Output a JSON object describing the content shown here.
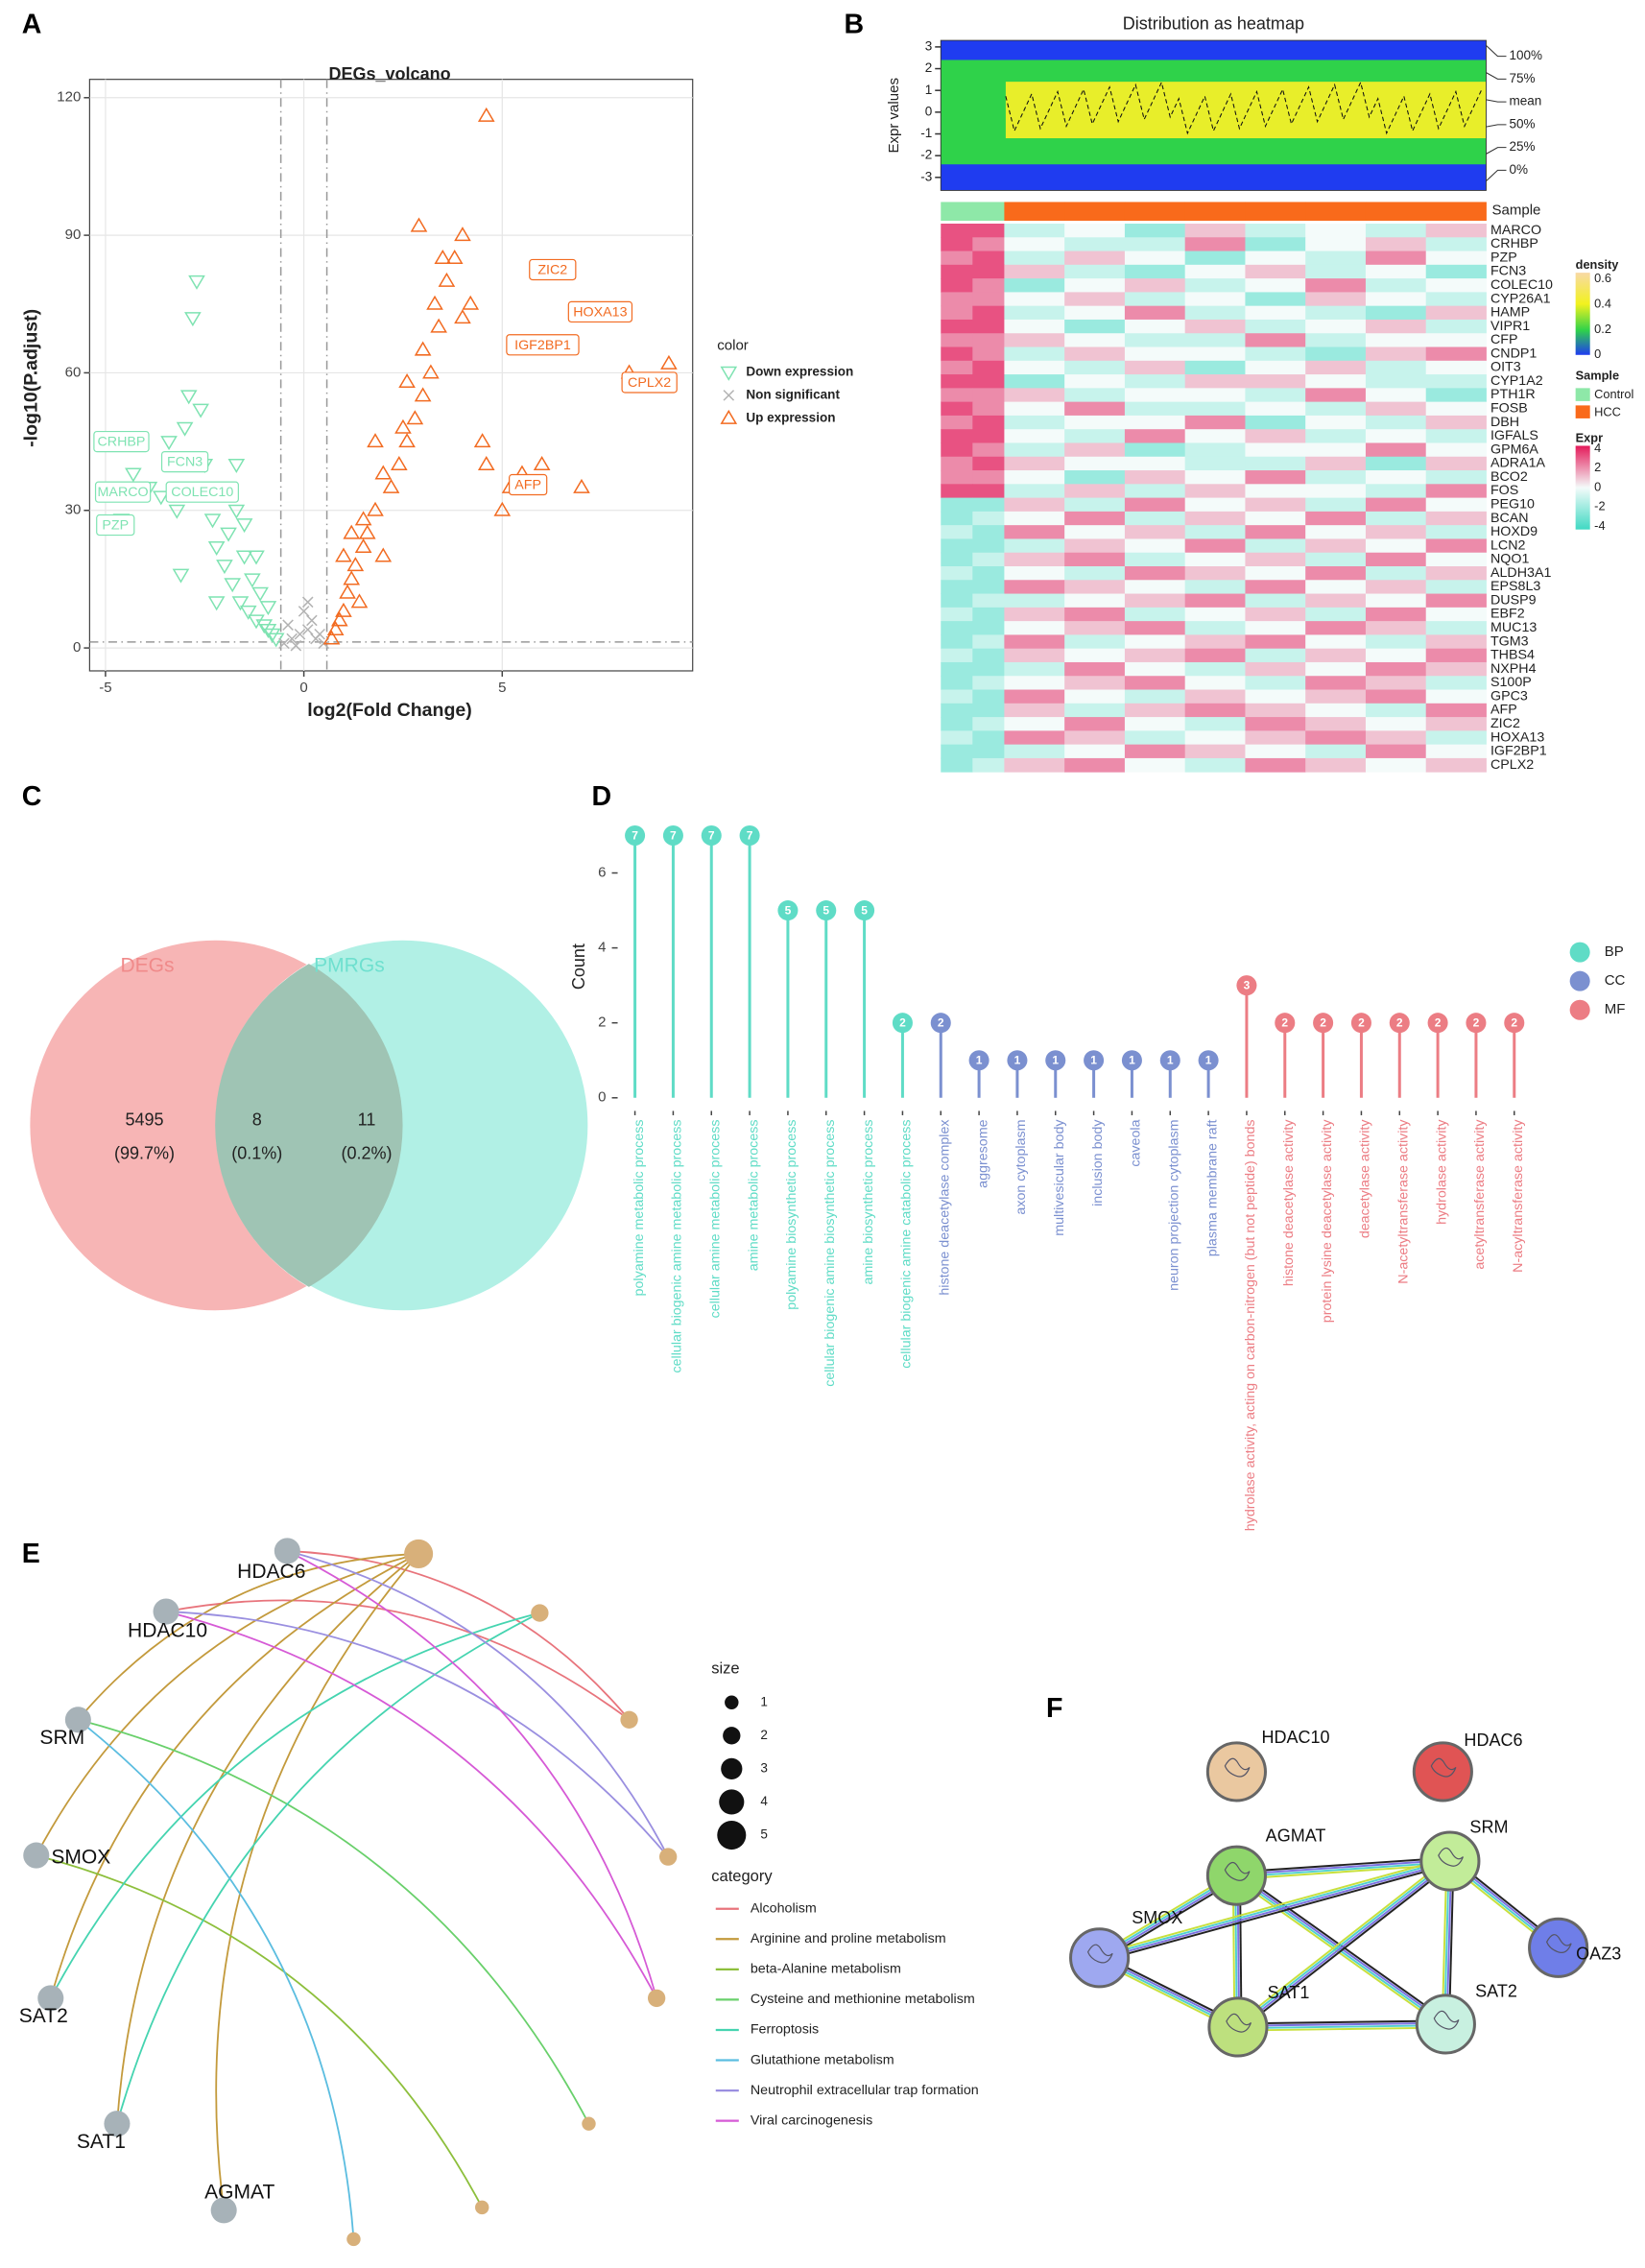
{
  "chart_data": [
    {
      "panel": "A",
      "type": "scatter",
      "title": "DEGs_volcano",
      "x_label": "log2(Fold Change)",
      "y_label": "-log10(P.adjust)",
      "xlim": [
        -5.4,
        9.8
      ],
      "ylim": [
        -5,
        124
      ],
      "xticks": [
        -5,
        0,
        5
      ],
      "yticks": [
        0,
        30,
        60,
        90,
        120
      ],
      "grid": true,
      "legend_title": "color",
      "thresholds": {
        "x": [
          -0.58,
          0.58
        ],
        "y": [
          1.3
        ]
      },
      "series": [
        {
          "name": "Down expression",
          "color": "#7fe3b2",
          "marker": "triangle-down",
          "x": [
            -4.3,
            -3.9,
            -3.6,
            -3.2,
            -3.0,
            -2.8,
            -2.6,
            -2.5,
            -2.3,
            -2.2,
            -2.0,
            -1.9,
            -1.8,
            -1.7,
            -1.6,
            -1.5,
            -1.4,
            -1.3,
            -1.2,
            -1.1,
            -1.0,
            -0.9,
            -0.8,
            -0.7,
            -2.7,
            -3.4,
            -1.9,
            -1.5,
            -2.2,
            -1.2,
            -0.9,
            -2.9,
            -4.6,
            -3.1,
            -1.7
          ],
          "y": [
            38,
            35,
            33,
            30,
            48,
            72,
            52,
            40,
            28,
            22,
            18,
            25,
            14,
            30,
            10,
            20,
            8,
            15,
            6,
            12,
            5,
            4,
            3,
            2,
            80,
            45,
            35,
            27,
            10,
            20,
            9,
            55,
            28,
            16,
            40
          ],
          "labels": [
            {
              "text": "CRHBP",
              "x": -4.6,
              "y": 45
            },
            {
              "text": "FCN3",
              "x": -3.0,
              "y": 40.6
            },
            {
              "text": "MARCO",
              "x": -4.56,
              "y": 34
            },
            {
              "text": "COLEC10",
              "x": -2.56,
              "y": 34
            },
            {
              "text": "PZP",
              "x": -4.75,
              "y": 26.8
            }
          ]
        },
        {
          "name": "Non significant",
          "color": "#b3b3b3",
          "marker": "cross",
          "x": [
            -0.5,
            -0.3,
            -0.1,
            0.1,
            0.3,
            0.5,
            -0.4,
            0.2,
            0,
            0.4,
            -0.2,
            0.1
          ],
          "y": [
            1,
            2,
            3,
            4,
            2,
            1,
            5,
            6,
            8,
            3,
            0.5,
            10
          ],
          "labels": []
        },
        {
          "name": "Up expression",
          "color": "#f26b21",
          "marker": "triangle-up",
          "x": [
            0.7,
            0.8,
            0.9,
            1.0,
            1.1,
            1.2,
            1.3,
            1.4,
            1.5,
            1.6,
            1.8,
            2.0,
            2.2,
            2.4,
            2.6,
            2.8,
            3.0,
            3.2,
            3.4,
            3.6,
            3.8,
            4.0,
            4.2,
            4.5,
            5.0,
            5.5,
            6.0,
            7.0,
            8.2,
            1.0,
            1.5,
            2.0,
            2.5,
            3.0,
            3.5,
            4.0,
            1.2,
            1.8,
            2.6,
            3.3,
            4.6,
            5.2,
            4.6,
            2.9,
            9.2
          ],
          "y": [
            2,
            4,
            6,
            8,
            12,
            15,
            18,
            10,
            22,
            25,
            30,
            20,
            35,
            40,
            45,
            50,
            55,
            60,
            70,
            80,
            85,
            90,
            75,
            45,
            30,
            38,
            40,
            35,
            60,
            20,
            28,
            38,
            48,
            65,
            85,
            72,
            25,
            45,
            58,
            75,
            40,
            35,
            116,
            92,
            62
          ],
          "labels": [
            {
              "text": "ZIC2",
              "x": 6.27,
              "y": 82.5
            },
            {
              "text": "HOXA13",
              "x": 7.47,
              "y": 73.3
            },
            {
              "text": "IGF2BP1",
              "x": 6.02,
              "y": 66.1
            },
            {
              "text": "CPLX2",
              "x": 8.71,
              "y": 57.9
            },
            {
              "text": "AFP",
              "x": 5.65,
              "y": 35.6
            }
          ]
        }
      ]
    },
    {
      "panel": "B",
      "type": "heatmap",
      "title": "Distribution as heatmap",
      "y_label": "Expr values",
      "ylim": [
        -3.6,
        3.3
      ],
      "yticks": [
        -3,
        -2,
        -1,
        0,
        1,
        2,
        3
      ],
      "quantile_labels": [
        "100%",
        "75%",
        "mean",
        "50%",
        "25%",
        "0%"
      ],
      "annotation_title": "Sample",
      "groups": [
        {
          "name": "Control",
          "color": "#8ee8a8"
        },
        {
          "name": "HCC",
          "color": "#f96a1b"
        }
      ],
      "column_groups": [
        0,
        0,
        1,
        1,
        1,
        1,
        1,
        1,
        1,
        1
      ],
      "rows": [
        "MARCO",
        "CRHBP",
        "PZP",
        "FCN3",
        "COLEC10",
        "CYP26A1",
        "HAMP",
        "VIPR1",
        "CFP",
        "CNDP1",
        "OIT3",
        "CYP1A2",
        "PTH1R",
        "FOSB",
        "DBH",
        "IGFALS",
        "GPM6A",
        "ADRA1A",
        "BCO2",
        "FOS",
        "PEG10",
        "BCAN",
        "HOXD9",
        "LCN2",
        "NQO1",
        "ALDH3A1",
        "EPS8L3",
        "DUSP9",
        "EBF2",
        "MUC13",
        "TGM3",
        "THBS4",
        "NXPH4",
        "S100P",
        "GPC3",
        "AFP",
        "ZIC2",
        "HOXA13",
        "IGF2BP1",
        "CPLX2"
      ],
      "values": [
        [
          3,
          3,
          -1,
          0,
          -2,
          1,
          -1,
          0,
          -1,
          1
        ],
        [
          3,
          2,
          0,
          -1,
          -1,
          2,
          -2,
          0,
          1,
          -1
        ],
        [
          2,
          3,
          -1,
          1,
          0,
          -2,
          0,
          -1,
          2,
          0
        ],
        [
          3,
          3,
          1,
          -1,
          -2,
          0,
          1,
          -1,
          0,
          -2
        ],
        [
          3,
          2,
          -2,
          0,
          1,
          -1,
          0,
          2,
          -1,
          0
        ],
        [
          2,
          2,
          0,
          1,
          -1,
          0,
          -2,
          1,
          0,
          -1
        ],
        [
          2,
          3,
          -1,
          0,
          2,
          -1,
          0,
          -1,
          -2,
          1
        ],
        [
          3,
          3,
          0,
          -2,
          0,
          1,
          -1,
          0,
          1,
          -1
        ],
        [
          2,
          2,
          1,
          0,
          -1,
          -1,
          2,
          -1,
          0,
          0
        ],
        [
          3,
          2,
          -1,
          1,
          0,
          0,
          -1,
          -2,
          1,
          2
        ],
        [
          2,
          3,
          0,
          -1,
          1,
          -2,
          0,
          1,
          -1,
          0
        ],
        [
          3,
          3,
          -2,
          0,
          -1,
          1,
          1,
          0,
          -1,
          -1
        ],
        [
          2,
          2,
          1,
          -1,
          0,
          0,
          -1,
          2,
          0,
          -2
        ],
        [
          3,
          2,
          0,
          2,
          -1,
          -1,
          0,
          -1,
          1,
          0
        ],
        [
          2,
          3,
          -1,
          0,
          0,
          2,
          -2,
          0,
          -1,
          1
        ],
        [
          3,
          3,
          0,
          -1,
          2,
          0,
          1,
          -1,
          0,
          -1
        ],
        [
          3,
          2,
          -1,
          1,
          -2,
          -1,
          0,
          0,
          2,
          0
        ],
        [
          2,
          3,
          1,
          0,
          0,
          -1,
          -1,
          1,
          -2,
          1
        ],
        [
          2,
          2,
          0,
          -2,
          1,
          0,
          2,
          -1,
          0,
          -1
        ],
        [
          3,
          3,
          -1,
          1,
          -1,
          1,
          0,
          0,
          -1,
          2
        ],
        [
          -2,
          -2,
          1,
          -1,
          2,
          0,
          1,
          -1,
          2,
          0
        ],
        [
          -2,
          -1,
          0,
          2,
          -1,
          1,
          0,
          2,
          -1,
          1
        ],
        [
          -1,
          -2,
          2,
          0,
          1,
          -1,
          2,
          0,
          1,
          -1
        ],
        [
          -2,
          -2,
          -1,
          1,
          0,
          2,
          -1,
          1,
          0,
          2
        ],
        [
          -2,
          -1,
          1,
          2,
          -1,
          0,
          1,
          -1,
          2,
          0
        ],
        [
          -1,
          -2,
          0,
          -1,
          2,
          1,
          0,
          2,
          -1,
          1
        ],
        [
          -2,
          -2,
          2,
          1,
          0,
          -1,
          2,
          0,
          1,
          -1
        ],
        [
          -2,
          -1,
          -1,
          0,
          1,
          2,
          -1,
          1,
          0,
          2
        ],
        [
          -1,
          -2,
          1,
          2,
          -1,
          0,
          1,
          -1,
          2,
          0
        ],
        [
          -2,
          -2,
          0,
          1,
          2,
          -1,
          0,
          2,
          1,
          -1
        ],
        [
          -2,
          -1,
          2,
          -1,
          0,
          1,
          2,
          0,
          -1,
          1
        ],
        [
          -1,
          -2,
          1,
          0,
          1,
          2,
          -1,
          1,
          0,
          2
        ],
        [
          -2,
          -2,
          -1,
          2,
          0,
          -1,
          1,
          0,
          2,
          1
        ],
        [
          -2,
          -1,
          0,
          1,
          2,
          0,
          -1,
          2,
          1,
          -1
        ],
        [
          -1,
          -2,
          2,
          0,
          -1,
          1,
          0,
          1,
          2,
          0
        ],
        [
          -2,
          -2,
          1,
          -1,
          1,
          2,
          1,
          0,
          -1,
          2
        ],
        [
          -2,
          -1,
          0,
          2,
          0,
          -1,
          2,
          1,
          0,
          1
        ],
        [
          -1,
          -2,
          2,
          1,
          -1,
          0,
          1,
          2,
          1,
          -1
        ],
        [
          -2,
          -2,
          -1,
          0,
          2,
          1,
          0,
          -1,
          2,
          0
        ],
        [
          -2,
          -1,
          1,
          2,
          0,
          -1,
          2,
          1,
          0,
          1
        ]
      ],
      "density_legend": {
        "title": "density",
        "lim": [
          0,
          0.65
        ],
        "ticks": [
          0.6,
          0.4,
          0.2,
          0
        ]
      },
      "value_legend": {
        "title": "Expr",
        "lim": [
          -4.3,
          4.3
        ],
        "ticks": [
          4,
          2,
          0,
          -2,
          -4
        ]
      }
    },
    {
      "panel": "C",
      "type": "venn",
      "sets": [
        "DEGs",
        "PMRGs"
      ],
      "colors": [
        "#f7b5b5",
        "#a3ede1"
      ],
      "label_colors": [
        "#f08a8a",
        "#6fe0cf"
      ],
      "values": [
        5495,
        8,
        11
      ],
      "percents": [
        99.7,
        0.1,
        0.2
      ],
      "percent_labels": [
        "(99.7%)",
        "(0.1%)",
        "(0.2%)"
      ]
    },
    {
      "panel": "D",
      "type": "lollipop",
      "y_label": "Count",
      "ylim": [
        -0.35,
        7.35
      ],
      "yticks": [
        0,
        2,
        4,
        6
      ],
      "categories": [
        "polyamine metabolic process",
        "cellular biogenic amine metabolic process",
        "cellular amine metabolic process",
        "amine metabolic process",
        "polyamine biosynthetic process",
        "cellular biogenic amine biosynthetic process",
        "amine biosynthetic process",
        "cellular biogenic amine catabolic process",
        "histone deacetylase complex",
        "aggresome",
        "axon cytoplasm",
        "multivesicular body",
        "inclusion body",
        "caveola",
        "neuron projection cytoplasm",
        "plasma membrane raft",
        "hydrolase activity, acting on carbon-nitrogen (but not peptide) bonds",
        "histone deacetylase activity",
        "protein lysine deacetylase activity",
        "deacetylase activity",
        "N-acetyltransferase activity",
        "hydrolase activity",
        "acetyltransferase activity",
        "N-acyltransferase activity"
      ],
      "values": [
        7,
        7,
        7,
        7,
        5,
        5,
        5,
        2,
        2,
        1,
        1,
        1,
        1,
        1,
        1,
        1,
        3,
        2,
        2,
        2,
        2,
        2,
        2,
        2
      ],
      "category_groups": [
        0,
        0,
        0,
        0,
        0,
        0,
        0,
        0,
        1,
        1,
        1,
        1,
        1,
        1,
        1,
        1,
        2,
        2,
        2,
        2,
        2,
        2,
        2,
        2
      ],
      "groups": [
        {
          "name": "BP",
          "color": "#5fdcc6"
        },
        {
          "name": "CC",
          "color": "#7b90d0"
        },
        {
          "name": "MF",
          "color": "#ec7d84"
        }
      ]
    },
    {
      "panel": "E",
      "type": "cnet",
      "genes": [
        "HDAC6",
        "HDAC10",
        "SRM",
        "SMOX",
        "SAT2",
        "SAT1",
        "AGMAT"
      ],
      "size_title": "size",
      "size_values": [
        1,
        2,
        3,
        4,
        5
      ],
      "category_title": "category",
      "categories": [
        {
          "name": "Alcoholism",
          "color": "#e8747c",
          "size": 2,
          "genes": [
            0,
            1
          ]
        },
        {
          "name": "Arginine and proline metabolism",
          "color": "#c39a3c",
          "size": 5,
          "genes": [
            2,
            3,
            4,
            5,
            6
          ]
        },
        {
          "name": "beta-Alanine metabolism",
          "color": "#8dbf3c",
          "size": 1,
          "genes": [
            3
          ]
        },
        {
          "name": "Cysteine and methionine metabolism",
          "color": "#69d06b",
          "size": 1,
          "genes": [
            2
          ]
        },
        {
          "name": "Ferroptosis",
          "color": "#45d4b0",
          "size": 2,
          "genes": [
            4,
            5
          ]
        },
        {
          "name": "Glutathione metabolism",
          "color": "#5bbde0",
          "size": 1,
          "genes": [
            2
          ]
        },
        {
          "name": "Neutrophil extracellular trap formation",
          "color": "#9a8fe0",
          "size": 2,
          "genes": [
            0,
            1
          ]
        },
        {
          "name": "Viral carcinogenesis",
          "color": "#d65ad6",
          "size": 2,
          "genes": [
            0,
            1
          ]
        }
      ]
    },
    {
      "panel": "F",
      "type": "network",
      "nodes": [
        {
          "name": "HDAC10",
          "color": "#eac8a0"
        },
        {
          "name": "HDAC6",
          "color": "#e05454"
        },
        {
          "name": "AGMAT",
          "color": "#8fd66b"
        },
        {
          "name": "SRM",
          "color": "#c2ec99"
        },
        {
          "name": "SMOX",
          "color": "#9ea8f0"
        },
        {
          "name": "OAZ3",
          "color": "#6f7ee8"
        },
        {
          "name": "SAT1",
          "color": "#bde07e"
        },
        {
          "name": "SAT2",
          "color": "#c8f0e0"
        }
      ],
      "edges": [
        [
          2,
          3
        ],
        [
          2,
          4
        ],
        [
          2,
          6
        ],
        [
          2,
          7
        ],
        [
          3,
          6
        ],
        [
          3,
          7
        ],
        [
          3,
          4
        ],
        [
          3,
          5
        ],
        [
          4,
          6
        ],
        [
          6,
          7
        ]
      ]
    }
  ]
}
